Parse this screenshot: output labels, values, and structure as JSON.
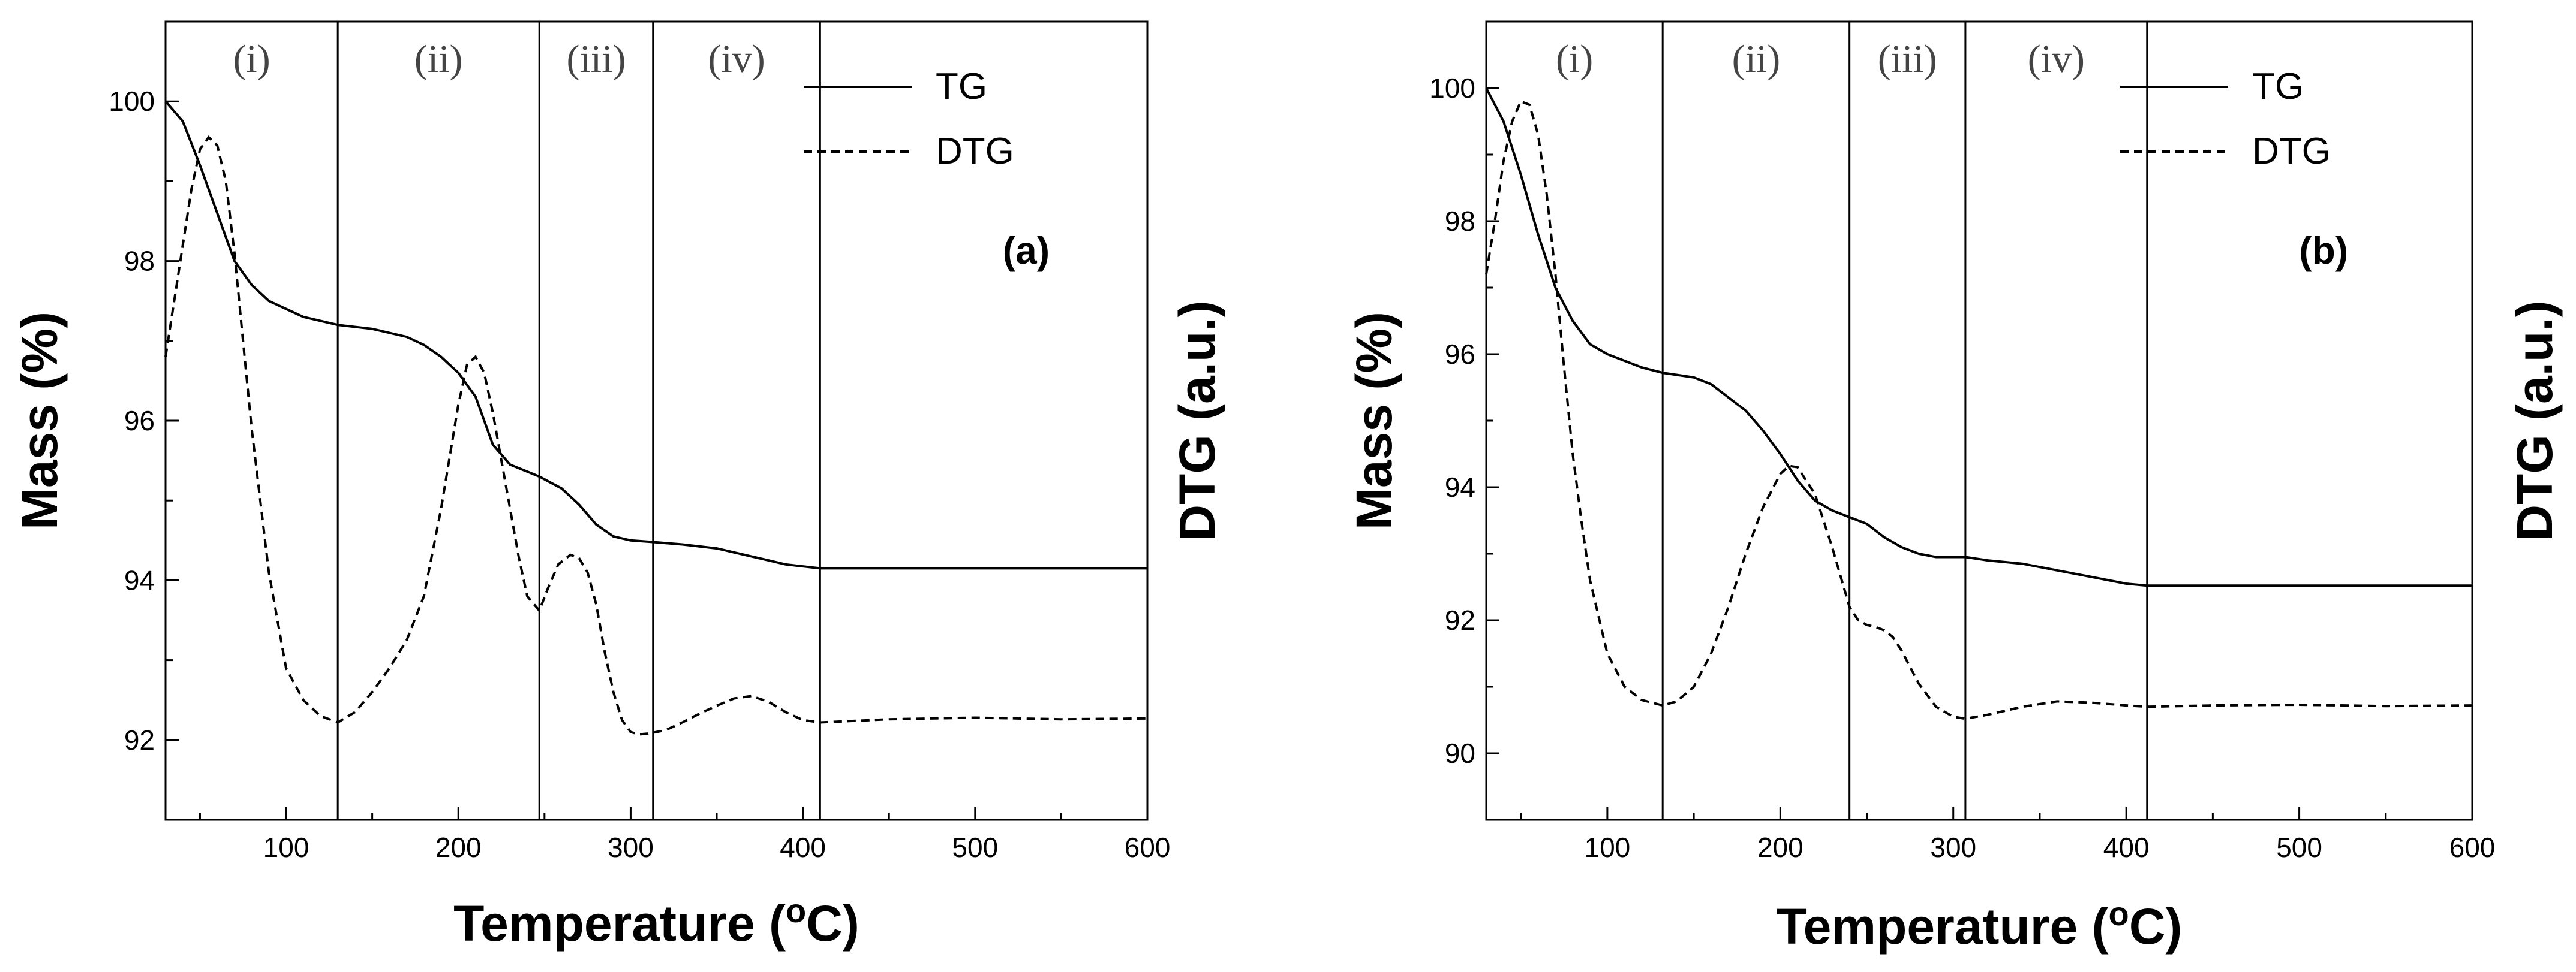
{
  "chart_data": [
    {
      "type": "line",
      "panel": "(a)",
      "xlabel_base": "Temperature (",
      "xlabel_sup": "o",
      "xlabel_end": "C)",
      "ylabel": "Mass (%)",
      "y2label": "DTG (a.u.)",
      "xlim": [
        30,
        600
      ],
      "ylim": [
        91,
        101
      ],
      "xticks": [
        100,
        200,
        300,
        400,
        500,
        600
      ],
      "yticks": [
        92,
        94,
        96,
        98,
        100
      ],
      "regions": [
        {
          "label": "(i)",
          "from": 30,
          "to": 130
        },
        {
          "label": "(ii)",
          "from": 130,
          "to": 247
        },
        {
          "label": "(iii)",
          "from": 247,
          "to": 313
        },
        {
          "label": "(iv)",
          "from": 313,
          "to": 410
        }
      ],
      "series": [
        {
          "name": "TG",
          "style": "solid",
          "x": [
            30,
            40,
            50,
            60,
            70,
            80,
            90,
            100,
            110,
            130,
            150,
            170,
            180,
            190,
            200,
            210,
            220,
            230,
            247,
            260,
            270,
            280,
            290,
            300,
            313,
            330,
            350,
            370,
            390,
            410,
            450,
            500,
            550,
            600
          ],
          "y": [
            100.0,
            99.75,
            99.2,
            98.6,
            98.0,
            97.7,
            97.5,
            97.4,
            97.3,
            97.2,
            97.15,
            97.05,
            96.95,
            96.8,
            96.6,
            96.3,
            95.7,
            95.45,
            95.3,
            95.15,
            94.95,
            94.7,
            94.55,
            94.5,
            94.48,
            94.45,
            94.4,
            94.3,
            94.2,
            94.15,
            94.15,
            94.15,
            94.15,
            94.15
          ]
        },
        {
          "name": "DTG",
          "style": "dashed",
          "x": [
            30,
            35,
            40,
            45,
            50,
            55,
            60,
            65,
            70,
            75,
            80,
            90,
            100,
            110,
            120,
            130,
            140,
            150,
            160,
            170,
            180,
            190,
            200,
            205,
            210,
            215,
            220,
            225,
            230,
            235,
            240,
            247,
            252,
            258,
            265,
            270,
            275,
            280,
            285,
            290,
            295,
            300,
            305,
            310,
            315,
            320,
            330,
            340,
            350,
            360,
            370,
            380,
            390,
            400,
            410,
            450,
            500,
            550,
            600
          ],
          "y": [
            96.8,
            97.5,
            98.2,
            98.9,
            99.4,
            99.55,
            99.45,
            99.0,
            98.1,
            97.0,
            95.9,
            94.1,
            92.9,
            92.5,
            92.3,
            92.22,
            92.35,
            92.6,
            92.9,
            93.25,
            93.8,
            94.9,
            96.2,
            96.7,
            96.8,
            96.6,
            96.1,
            95.5,
            94.9,
            94.3,
            93.8,
            93.62,
            93.9,
            94.2,
            94.32,
            94.28,
            94.1,
            93.7,
            93.1,
            92.6,
            92.25,
            92.1,
            92.07,
            92.08,
            92.1,
            92.12,
            92.22,
            92.33,
            92.43,
            92.52,
            92.55,
            92.48,
            92.35,
            92.25,
            92.22,
            92.26,
            92.28,
            92.26,
            92.27
          ]
        }
      ]
    },
    {
      "type": "line",
      "panel": "(b)",
      "xlabel_base": "Temperature (",
      "xlabel_sup": "o",
      "xlabel_end": "C)",
      "ylabel": "Mass (%)",
      "y2label": "DTG (a.u.)",
      "xlim": [
        30,
        600
      ],
      "ylim": [
        89,
        101
      ],
      "xticks": [
        100,
        200,
        300,
        400,
        500,
        600
      ],
      "yticks": [
        90,
        92,
        94,
        96,
        98,
        100
      ],
      "regions": [
        {
          "label": "(i)",
          "from": 30,
          "to": 132
        },
        {
          "label": "(ii)",
          "from": 132,
          "to": 240
        },
        {
          "label": "(iii)",
          "from": 240,
          "to": 307
        },
        {
          "label": "(iv)",
          "from": 307,
          "to": 412
        }
      ],
      "series": [
        {
          "name": "TG",
          "style": "solid",
          "x": [
            30,
            40,
            50,
            60,
            70,
            80,
            90,
            100,
            110,
            120,
            132,
            150,
            160,
            170,
            180,
            190,
            200,
            210,
            220,
            230,
            240,
            250,
            260,
            270,
            280,
            290,
            307,
            320,
            340,
            360,
            380,
            400,
            412,
            450,
            500,
            550,
            600
          ],
          "y": [
            100.0,
            99.5,
            98.7,
            97.8,
            97.0,
            96.5,
            96.15,
            96.0,
            95.9,
            95.8,
            95.72,
            95.65,
            95.55,
            95.35,
            95.15,
            94.85,
            94.5,
            94.1,
            93.8,
            93.65,
            93.55,
            93.45,
            93.25,
            93.1,
            93.0,
            92.95,
            92.95,
            92.9,
            92.85,
            92.75,
            92.65,
            92.55,
            92.52,
            92.52,
            92.52,
            92.52,
            92.52
          ]
        },
        {
          "name": "DTG",
          "style": "dashed",
          "x": [
            30,
            35,
            40,
            45,
            50,
            55,
            60,
            65,
            70,
            75,
            80,
            85,
            90,
            100,
            110,
            120,
            132,
            140,
            150,
            160,
            170,
            180,
            190,
            200,
            205,
            210,
            220,
            230,
            240,
            245,
            250,
            255,
            260,
            265,
            270,
            280,
            290,
            300,
            307,
            320,
            340,
            360,
            380,
            400,
            412,
            450,
            500,
            550,
            600
          ],
          "y": [
            97.2,
            98.0,
            98.9,
            99.5,
            99.8,
            99.75,
            99.3,
            98.4,
            97.2,
            95.8,
            94.5,
            93.5,
            92.6,
            91.5,
            91.0,
            90.8,
            90.72,
            90.78,
            91.0,
            91.5,
            92.2,
            93.0,
            93.7,
            94.2,
            94.32,
            94.3,
            93.9,
            93.1,
            92.2,
            92.0,
            91.93,
            91.9,
            91.85,
            91.75,
            91.55,
            91.05,
            90.7,
            90.55,
            90.52,
            90.58,
            90.7,
            90.78,
            90.76,
            90.72,
            90.7,
            90.72,
            90.73,
            90.71,
            90.72
          ]
        }
      ]
    }
  ]
}
